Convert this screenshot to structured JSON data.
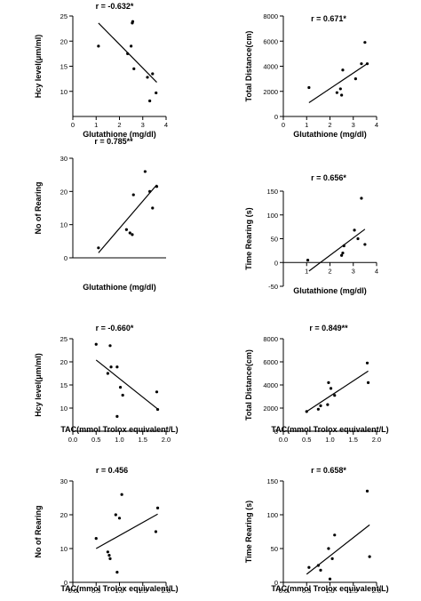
{
  "chart_data": [
    {
      "type": "scatter",
      "r_text": "r = -0.632*",
      "xlabel": "Glutathione (mg/dl)",
      "ylabel": "Hcy level(μm/ml)",
      "xlim": [
        0,
        4
      ],
      "ylim": [
        5,
        25
      ],
      "xticks": [
        "0",
        "1",
        "2",
        "3",
        "4"
      ],
      "yticks": [
        "10",
        "15",
        "20",
        "25"
      ],
      "points": [
        [
          1.1,
          19.0
        ],
        [
          2.35,
          17.5
        ],
        [
          2.5,
          19.0
        ],
        [
          2.55,
          23.6
        ],
        [
          2.57,
          23.9
        ],
        [
          2.62,
          14.5
        ],
        [
          3.2,
          12.8
        ],
        [
          3.3,
          8.1
        ],
        [
          3.42,
          13.5
        ],
        [
          3.57,
          9.7
        ]
      ],
      "fit": [
        [
          1.1,
          23.6
        ],
        [
          3.6,
          11.8
        ]
      ]
    },
    {
      "type": "scatter",
      "r_text": "r = 0.671*",
      "xlabel": "Glutathione (mg/dl)",
      "ylabel": "Total Distance(cm)",
      "xlim": [
        0,
        4
      ],
      "ylim": [
        0,
        8000
      ],
      "xticks": [
        "0",
        "1",
        "2",
        "3",
        "4"
      ],
      "yticks": [
        "0",
        "2000",
        "4000",
        "6000",
        "8000"
      ],
      "points": [
        [
          1.1,
          2300
        ],
        [
          2.3,
          1900
        ],
        [
          2.45,
          2200
        ],
        [
          2.5,
          1700
        ],
        [
          2.55,
          3700
        ],
        [
          3.1,
          3000
        ],
        [
          3.35,
          4200
        ],
        [
          3.5,
          5900
        ],
        [
          3.6,
          4200
        ]
      ],
      "fit": [
        [
          1.1,
          1100
        ],
        [
          3.6,
          4200
        ]
      ]
    },
    {
      "type": "scatter",
      "r_text": "r = 0.785**",
      "xlabel": "Glutathione (mg/dl)",
      "ylabel": "No of Rearing",
      "xlim": [
        0,
        4
      ],
      "ylim": [
        0,
        30
      ],
      "xticks": [],
      "yticks": [
        "0",
        "10",
        "20",
        "30"
      ],
      "points": [
        [
          1.1,
          3
        ],
        [
          2.3,
          8.5
        ],
        [
          2.45,
          7.5
        ],
        [
          2.55,
          7
        ],
        [
          2.6,
          19
        ],
        [
          3.1,
          26
        ],
        [
          3.3,
          20
        ],
        [
          3.42,
          15
        ],
        [
          3.6,
          21.5
        ]
      ],
      "fit": [
        [
          1.1,
          1.5
        ],
        [
          3.6,
          22
        ]
      ]
    },
    {
      "type": "scatter",
      "r_text": "r = 0.656*",
      "xlabel": "Glutathione (mg/dl)",
      "ylabel": "Time Rearing (s)",
      "xlim": [
        0,
        4
      ],
      "ylim": [
        -50,
        150
      ],
      "xticks": [
        "1",
        "2",
        "3",
        "4"
      ],
      "yticks": [
        "-50",
        "0",
        "50",
        "100",
        "150"
      ],
      "points": [
        [
          1.05,
          5
        ],
        [
          2.5,
          15
        ],
        [
          2.55,
          20
        ],
        [
          2.6,
          35
        ],
        [
          3.05,
          68
        ],
        [
          3.2,
          50
        ],
        [
          3.35,
          135
        ],
        [
          3.5,
          38
        ]
      ],
      "fit": [
        [
          1.1,
          -18
        ],
        [
          3.5,
          70
        ]
      ]
    },
    {
      "type": "scatter",
      "r_text": "r = -0.660*",
      "xlabel": "TAC(mmol Trolox equivalent/L)",
      "ylabel": "Hcy level(μm/ml)",
      "xlim": [
        0,
        2.0
      ],
      "ylim": [
        5,
        25
      ],
      "xticks": [
        "0.0",
        "0.5",
        "1.0",
        "1.5",
        "2.0"
      ],
      "yticks": [
        "10",
        "15",
        "20",
        "25"
      ],
      "points": [
        [
          0.5,
          23.8
        ],
        [
          0.75,
          17.5
        ],
        [
          0.8,
          23.5
        ],
        [
          0.82,
          18.9
        ],
        [
          0.95,
          8.2
        ],
        [
          0.95,
          18.9
        ],
        [
          1.02,
          14.5
        ],
        [
          1.07,
          12.8
        ],
        [
          1.8,
          13.5
        ],
        [
          1.82,
          9.7
        ]
      ],
      "fit": [
        [
          0.5,
          20.4
        ],
        [
          1.82,
          9.8
        ]
      ]
    },
    {
      "type": "scatter",
      "r_text": "r = 0.849**",
      "xlabel": "TAC(mmol Trolox equivalent/L)",
      "ylabel": "Total Distance(cm)",
      "xlim": [
        0,
        2.0
      ],
      "ylim": [
        0,
        8000
      ],
      "xticks": [
        "0.0",
        "0.5",
        "1.0",
        "1.5",
        "2.0"
      ],
      "yticks": [
        "0",
        "2000",
        "4000",
        "6000",
        "8000"
      ],
      "points": [
        [
          0.5,
          1700
        ],
        [
          0.75,
          1900
        ],
        [
          0.8,
          2200
        ],
        [
          0.95,
          2300
        ],
        [
          0.97,
          4200
        ],
        [
          1.02,
          3700
        ],
        [
          1.1,
          3100
        ],
        [
          1.8,
          5900
        ],
        [
          1.82,
          4200
        ]
      ],
      "fit": [
        [
          0.5,
          1700
        ],
        [
          1.82,
          5200
        ]
      ]
    },
    {
      "type": "scatter",
      "r_text": "r = 0.456",
      "xlabel": "TAC(mmol Trolox equivalent/L)",
      "ylabel": "No of Rearing",
      "xlim": [
        0,
        2.0
      ],
      "ylim": [
        0,
        30
      ],
      "xticks": [
        "0.0",
        "0.5",
        "1.0",
        "1.5",
        "2.0"
      ],
      "yticks": [
        "0",
        "10",
        "20",
        "30"
      ],
      "points": [
        [
          0.5,
          13
        ],
        [
          0.75,
          9
        ],
        [
          0.78,
          8
        ],
        [
          0.8,
          7
        ],
        [
          0.92,
          20
        ],
        [
          0.95,
          3
        ],
        [
          1.0,
          19
        ],
        [
          1.05,
          26
        ],
        [
          1.78,
          15
        ],
        [
          1.82,
          22
        ]
      ],
      "fit": [
        [
          0.5,
          10
        ],
        [
          1.82,
          20.2
        ]
      ]
    },
    {
      "type": "scatter",
      "r_text": "r = 0.658*",
      "xlabel": "TAC(mmol Trolox equivalent/L)",
      "ylabel": "Time Rearing (s)",
      "xlim": [
        0,
        2.0
      ],
      "ylim": [
        0,
        150
      ],
      "xticks": [
        "0.0",
        "0.5",
        "1.0",
        "1.5",
        "2.0"
      ],
      "yticks": [
        "0",
        "50",
        "100",
        "150"
      ],
      "points": [
        [
          0.55,
          22
        ],
        [
          0.75,
          25
        ],
        [
          0.8,
          18
        ],
        [
          0.97,
          50
        ],
        [
          1.0,
          5
        ],
        [
          1.05,
          35
        ],
        [
          1.1,
          70
        ],
        [
          1.8,
          135
        ],
        [
          1.85,
          38
        ]
      ],
      "fit": [
        [
          0.5,
          12
        ],
        [
          1.85,
          85
        ]
      ]
    }
  ]
}
